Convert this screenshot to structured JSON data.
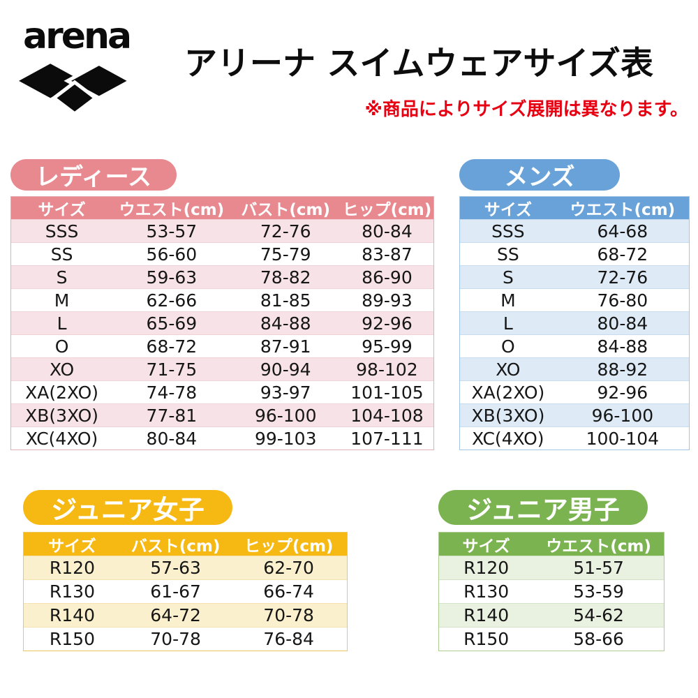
{
  "header": {
    "brand": "arena",
    "title": "アリーナ スイムウェアサイズ表",
    "note": "※商品によりサイズ展開は異なります。"
  },
  "colors": {
    "note_red": "#E60012",
    "text": "#111111",
    "ladies_main": "#E8898F",
    "mens_main": "#68A2D8",
    "girls_main": "#F6B914",
    "boys_main": "#7BB350"
  },
  "tables": [
    {
      "id": "ladies",
      "badge": "レディース",
      "main": "#E8898F",
      "tint": "#F7E3E7",
      "line": "#E3AFB5",
      "sep": "#EFD3D7",
      "columns": [
        "サイズ",
        "ウエスト(cm)",
        "バスト(cm)",
        "ヒップ(cm)"
      ],
      "rows": [
        [
          "SSS",
          "53-57",
          "72-76",
          "80-84"
        ],
        [
          "SS",
          "56-60",
          "75-79",
          "83-87"
        ],
        [
          "S",
          "59-63",
          "78-82",
          "86-90"
        ],
        [
          "M",
          "62-66",
          "81-85",
          "89-93"
        ],
        [
          "L",
          "65-69",
          "84-88",
          "92-96"
        ],
        [
          "O",
          "68-72",
          "87-91",
          "95-99"
        ],
        [
          "XO",
          "71-75",
          "90-94",
          "98-102"
        ],
        [
          "XA(2XO)",
          "74-78",
          "93-97",
          "101-105"
        ],
        [
          "XB(3XO)",
          "77-81",
          "96-100",
          "104-108"
        ],
        [
          "XC(4XO)",
          "80-84",
          "99-103",
          "107-111"
        ]
      ]
    },
    {
      "id": "mens",
      "badge": "メンズ",
      "main": "#68A2D8",
      "tint": "#DEEAF5",
      "line": "#A3C4E2",
      "sep": "#C9DCEF",
      "columns": [
        "サイズ",
        "ウエスト(cm)"
      ],
      "rows": [
        [
          "SSS",
          "64-68"
        ],
        [
          "SS",
          "68-72"
        ],
        [
          "S",
          "72-76"
        ],
        [
          "M",
          "76-80"
        ],
        [
          "L",
          "80-84"
        ],
        [
          "O",
          "84-88"
        ],
        [
          "XO",
          "88-92"
        ],
        [
          "XA(2XO)",
          "92-96"
        ],
        [
          "XB(3XO)",
          "96-100"
        ],
        [
          "XC(4XO)",
          "100-104"
        ]
      ]
    },
    {
      "id": "girls",
      "badge": "ジュニア女子",
      "main": "#F6B914",
      "tint": "#FBF0CD",
      "line": "#EFC65C",
      "sep": "#F5E2B0",
      "columns": [
        "サイズ",
        "バスト(cm)",
        "ヒップ(cm)"
      ],
      "rows": [
        [
          "R120",
          "57-63",
          "62-70"
        ],
        [
          "R130",
          "61-67",
          "66-74"
        ],
        [
          "R140",
          "64-72",
          "70-78"
        ],
        [
          "R150",
          "70-78",
          "76-84"
        ]
      ]
    },
    {
      "id": "boys",
      "badge": "ジュニア男子",
      "main": "#7BB350",
      "tint": "#E9F1E1",
      "line": "#ABCD90",
      "sep": "#D3E4C6",
      "columns": [
        "サイズ",
        "ウエスト(cm)"
      ],
      "rows": [
        [
          "R120",
          "51-57"
        ],
        [
          "R130",
          "53-59"
        ],
        [
          "R140",
          "54-62"
        ],
        [
          "R150",
          "58-66"
        ]
      ]
    }
  ]
}
